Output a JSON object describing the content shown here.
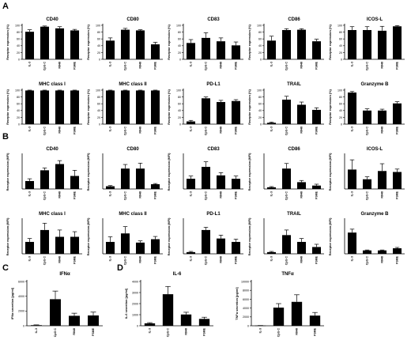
{
  "section_labels": [
    "A",
    "B",
    "C",
    "D"
  ],
  "categories": [
    "IL-3",
    "CpG C",
    "R848",
    "FSME"
  ],
  "colors": {
    "bar": "#000000",
    "axis": "#000000",
    "background": "#ffffff"
  },
  "chart_data": [
    {
      "type": "bar",
      "panel": "A",
      "title": "CD40",
      "ylabel": "Receptor expression (%)",
      "categories": [
        "IL-3",
        "CpG C",
        "R848",
        "FSME"
      ],
      "values": [
        81,
        96,
        91,
        85
      ],
      "errors": [
        6,
        2,
        5,
        3
      ],
      "ylim": [
        0,
        100
      ],
      "yticks": [
        0,
        20,
        40,
        60,
        80,
        100
      ]
    },
    {
      "type": "bar",
      "panel": "A",
      "title": "CD80",
      "ylabel": "Receptor expression (%)",
      "categories": [
        "IL-3",
        "CpG C",
        "R848",
        "FSME"
      ],
      "values": [
        55,
        87,
        85,
        44
      ],
      "errors": [
        8,
        4,
        2,
        6
      ],
      "ylim": [
        0,
        100
      ],
      "yticks": [
        0,
        20,
        40,
        60,
        80,
        100
      ]
    },
    {
      "type": "bar",
      "panel": "A",
      "title": "CD83",
      "ylabel": "Receptor expression (%)",
      "categories": [
        "IL-3",
        "CpG C",
        "R848",
        "FSME"
      ],
      "values": [
        48,
        63,
        53,
        41
      ],
      "errors": [
        10,
        15,
        10,
        10
      ],
      "ylim": [
        0,
        100
      ],
      "yticks": [
        0,
        20,
        40,
        60,
        80,
        100
      ]
    },
    {
      "type": "bar",
      "panel": "A",
      "title": "CD86",
      "ylabel": "Receptor expression (%)",
      "categories": [
        "IL-3",
        "CpG C",
        "R848",
        "FSME"
      ],
      "values": [
        55,
        86,
        87,
        53
      ],
      "errors": [
        13,
        4,
        3,
        6
      ],
      "ylim": [
        0,
        100
      ],
      "yticks": [
        0,
        20,
        40,
        60,
        80,
        100
      ]
    },
    {
      "type": "bar",
      "panel": "A",
      "title": "ICOS-L",
      "ylabel": "Receptor expression (%)",
      "categories": [
        "IL-3",
        "CpG C",
        "R848",
        "FSME"
      ],
      "values": [
        86,
        86,
        84,
        97
      ],
      "errors": [
        10,
        10,
        13,
        2
      ],
      "ylim": [
        0,
        100
      ],
      "yticks": [
        0,
        20,
        40,
        60,
        80,
        100
      ]
    },
    {
      "type": "bar",
      "panel": "A",
      "title": "MHC class I",
      "ylabel": "Receptor expression (%)",
      "categories": [
        "IL-3",
        "CpG C",
        "R848",
        "FSME"
      ],
      "values": [
        99,
        99,
        99,
        99
      ],
      "errors": [
        1,
        1,
        1,
        1
      ],
      "ylim": [
        0,
        100
      ],
      "yticks": [
        0,
        20,
        40,
        60,
        80,
        100
      ]
    },
    {
      "type": "bar",
      "panel": "A",
      "title": "MHC class II",
      "ylabel": "Receptor expression (%)",
      "categories": [
        "IL-3",
        "CpG C",
        "R848",
        "FSME"
      ],
      "values": [
        99,
        99,
        99,
        99
      ],
      "errors": [
        1,
        1,
        1,
        1
      ],
      "ylim": [
        0,
        100
      ],
      "yticks": [
        0,
        20,
        40,
        60,
        80,
        100
      ]
    },
    {
      "type": "bar",
      "panel": "A",
      "title": "PD-L1",
      "ylabel": "Receptor expression (%)",
      "categories": [
        "IL-3",
        "CpG C",
        "R848",
        "FSME"
      ],
      "values": [
        8,
        76,
        65,
        68
      ],
      "errors": [
        3,
        4,
        5,
        4
      ],
      "ylim": [
        0,
        100
      ],
      "yticks": [
        0,
        20,
        40,
        60,
        80,
        100
      ]
    },
    {
      "type": "bar",
      "panel": "A",
      "title": "TRAIL",
      "ylabel": "Receptor expression (%)",
      "categories": [
        "IL-3",
        "CpG C",
        "R848",
        "FSME"
      ],
      "values": [
        4,
        72,
        57,
        42
      ],
      "errors": [
        2,
        10,
        8,
        6
      ],
      "ylim": [
        0,
        100
      ],
      "yticks": [
        0,
        20,
        40,
        60,
        80,
        100
      ]
    },
    {
      "type": "bar",
      "panel": "A",
      "title": "Granzyme B",
      "ylabel": "Receptor expression (%)",
      "categories": [
        "IL-3",
        "CpG C",
        "R848",
        "FSME"
      ],
      "values": [
        93,
        40,
        40,
        61
      ],
      "errors": [
        3,
        5,
        4,
        5
      ],
      "ylim": [
        0,
        100
      ],
      "yticks": [
        0,
        20,
        40,
        60,
        80,
        100
      ]
    },
    {
      "type": "bar",
      "panel": "B",
      "title": "CD40",
      "ylabel": "Receptor expression (MFI)",
      "categories": [
        "IL-3",
        "CpG C",
        "R848",
        "FSME"
      ],
      "values": [
        0.14,
        0.33,
        0.44,
        0.23
      ],
      "errors": [
        0.04,
        0.04,
        0.06,
        0.1
      ],
      "ylim": [
        0,
        0.6
      ],
      "yticks": []
    },
    {
      "type": "bar",
      "panel": "B",
      "title": "CD80",
      "ylabel": "Receptor expression (MFI)",
      "categories": [
        "IL-3",
        "CpG C",
        "R848",
        "FSME"
      ],
      "values": [
        0.04,
        0.3,
        0.3,
        0.07
      ],
      "errors": [
        0.01,
        0.06,
        0.08,
        0.01
      ],
      "ylim": [
        0,
        0.5
      ],
      "yticks": []
    },
    {
      "type": "bar",
      "panel": "B",
      "title": "CD83",
      "ylabel": "Receptor expression (MFI)",
      "categories": [
        "IL-3",
        "CpG C",
        "R848",
        "FSME"
      ],
      "values": [
        0.3,
        0.65,
        0.4,
        0.3
      ],
      "errors": [
        0.08,
        0.15,
        0.08,
        0.08
      ],
      "ylim": [
        0,
        1
      ],
      "yticks": []
    },
    {
      "type": "bar",
      "panel": "B",
      "title": "CD86",
      "ylabel": "Receptor expression (MFI)",
      "categories": [
        "IL-3",
        "CpG C",
        "R848",
        "FSME"
      ],
      "values": [
        0.05,
        0.6,
        0.2,
        0.1
      ],
      "errors": [
        0.02,
        0.15,
        0.05,
        0.04
      ],
      "ylim": [
        0,
        1
      ],
      "yticks": []
    },
    {
      "type": "bar",
      "panel": "B",
      "title": "ICOS-L",
      "ylabel": "Receptor expression (MFI)",
      "categories": [
        "IL-3",
        "CpG C",
        "R848",
        "FSME"
      ],
      "values": [
        0.4,
        0.2,
        0.37,
        0.35
      ],
      "errors": [
        0.2,
        0.05,
        0.15,
        0.06
      ],
      "ylim": [
        0,
        0.7
      ],
      "yticks": []
    },
    {
      "type": "bar",
      "panel": "B",
      "title": "MHC class I",
      "ylabel": "Receptor expression (MFI)",
      "categories": [
        "IL-3",
        "CpG C",
        "R848",
        "FSME"
      ],
      "values": [
        0.35,
        0.7,
        0.5,
        0.5
      ],
      "errors": [
        0.1,
        0.2,
        0.2,
        0.15
      ],
      "ylim": [
        0,
        1
      ],
      "yticks": []
    },
    {
      "type": "bar",
      "panel": "B",
      "title": "MHC class II",
      "ylabel": "Receptor expression (MFI)",
      "categories": [
        "IL-3",
        "CpG C",
        "R848",
        "FSME"
      ],
      "values": [
        0.35,
        0.6,
        0.33,
        0.43
      ],
      "errors": [
        0.15,
        0.2,
        0.05,
        0.08
      ],
      "ylim": [
        0,
        1
      ],
      "yticks": []
    },
    {
      "type": "bar",
      "panel": "B",
      "title": "PD-L1",
      "ylabel": "Receptor expression (MFI)",
      "categories": [
        "IL-3",
        "CpG C",
        "R848",
        "FSME"
      ],
      "values": [
        0.05,
        0.7,
        0.45,
        0.35
      ],
      "errors": [
        0.02,
        0.08,
        0.1,
        0.08
      ],
      "ylim": [
        0,
        1
      ],
      "yticks": []
    },
    {
      "type": "bar",
      "panel": "B",
      "title": "TRAIL",
      "ylabel": "Receptor expression (MFI)",
      "categories": [
        "IL-3",
        "CpG C",
        "R848",
        "FSME"
      ],
      "values": [
        0.05,
        0.55,
        0.35,
        0.2
      ],
      "errors": [
        0.02,
        0.15,
        0.1,
        0.08
      ],
      "ylim": [
        0,
        1
      ],
      "yticks": []
    },
    {
      "type": "bar",
      "panel": "B",
      "title": "Granzyme B",
      "ylabel": "Receptor expression (MFI)",
      "categories": [
        "IL-3",
        "CpG C",
        "R848",
        "FSME"
      ],
      "values": [
        0.5,
        0.08,
        0.08,
        0.13
      ],
      "errors": [
        0.08,
        0.01,
        0.01,
        0.02
      ],
      "ylim": [
        0,
        0.8
      ],
      "yticks": []
    },
    {
      "type": "bar",
      "panel": "C",
      "title": "IFNα",
      "ylabel": "IFNα secretion [pg/ml]",
      "categories": [
        "IL-3",
        "CpG C",
        "R848",
        "FSME"
      ],
      "values": [
        80,
        3600,
        1350,
        1400
      ],
      "errors": [
        40,
        1100,
        350,
        450
      ],
      "ylim": [
        0,
        6000
      ],
      "yticks": [
        0,
        2000,
        4000,
        6000
      ]
    },
    {
      "type": "bar",
      "panel": "D",
      "title": "IL-6",
      "ylabel": "IL-6 secretion [pg/ml]",
      "categories": [
        "IL-3",
        "CpG C",
        "R848",
        "FSME"
      ],
      "values": [
        220,
        2850,
        1020,
        620
      ],
      "errors": [
        60,
        700,
        200,
        150
      ],
      "ylim": [
        0,
        4000
      ],
      "yticks": [
        0,
        1000,
        2000,
        3000,
        4000
      ]
    },
    {
      "type": "bar",
      "panel": "D",
      "title": "TNFα",
      "ylabel": "TNFα secretion [pg/ml]",
      "categories": [
        "IL-3",
        "CpG C",
        "R848",
        "FSME"
      ],
      "values": [
        40,
        4100,
        5400,
        2300
      ],
      "errors": [
        20,
        900,
        1600,
        700
      ],
      "ylim": [
        0,
        10000
      ],
      "yticks": [
        0,
        2000,
        4000,
        6000,
        8000,
        10000
      ]
    }
  ]
}
